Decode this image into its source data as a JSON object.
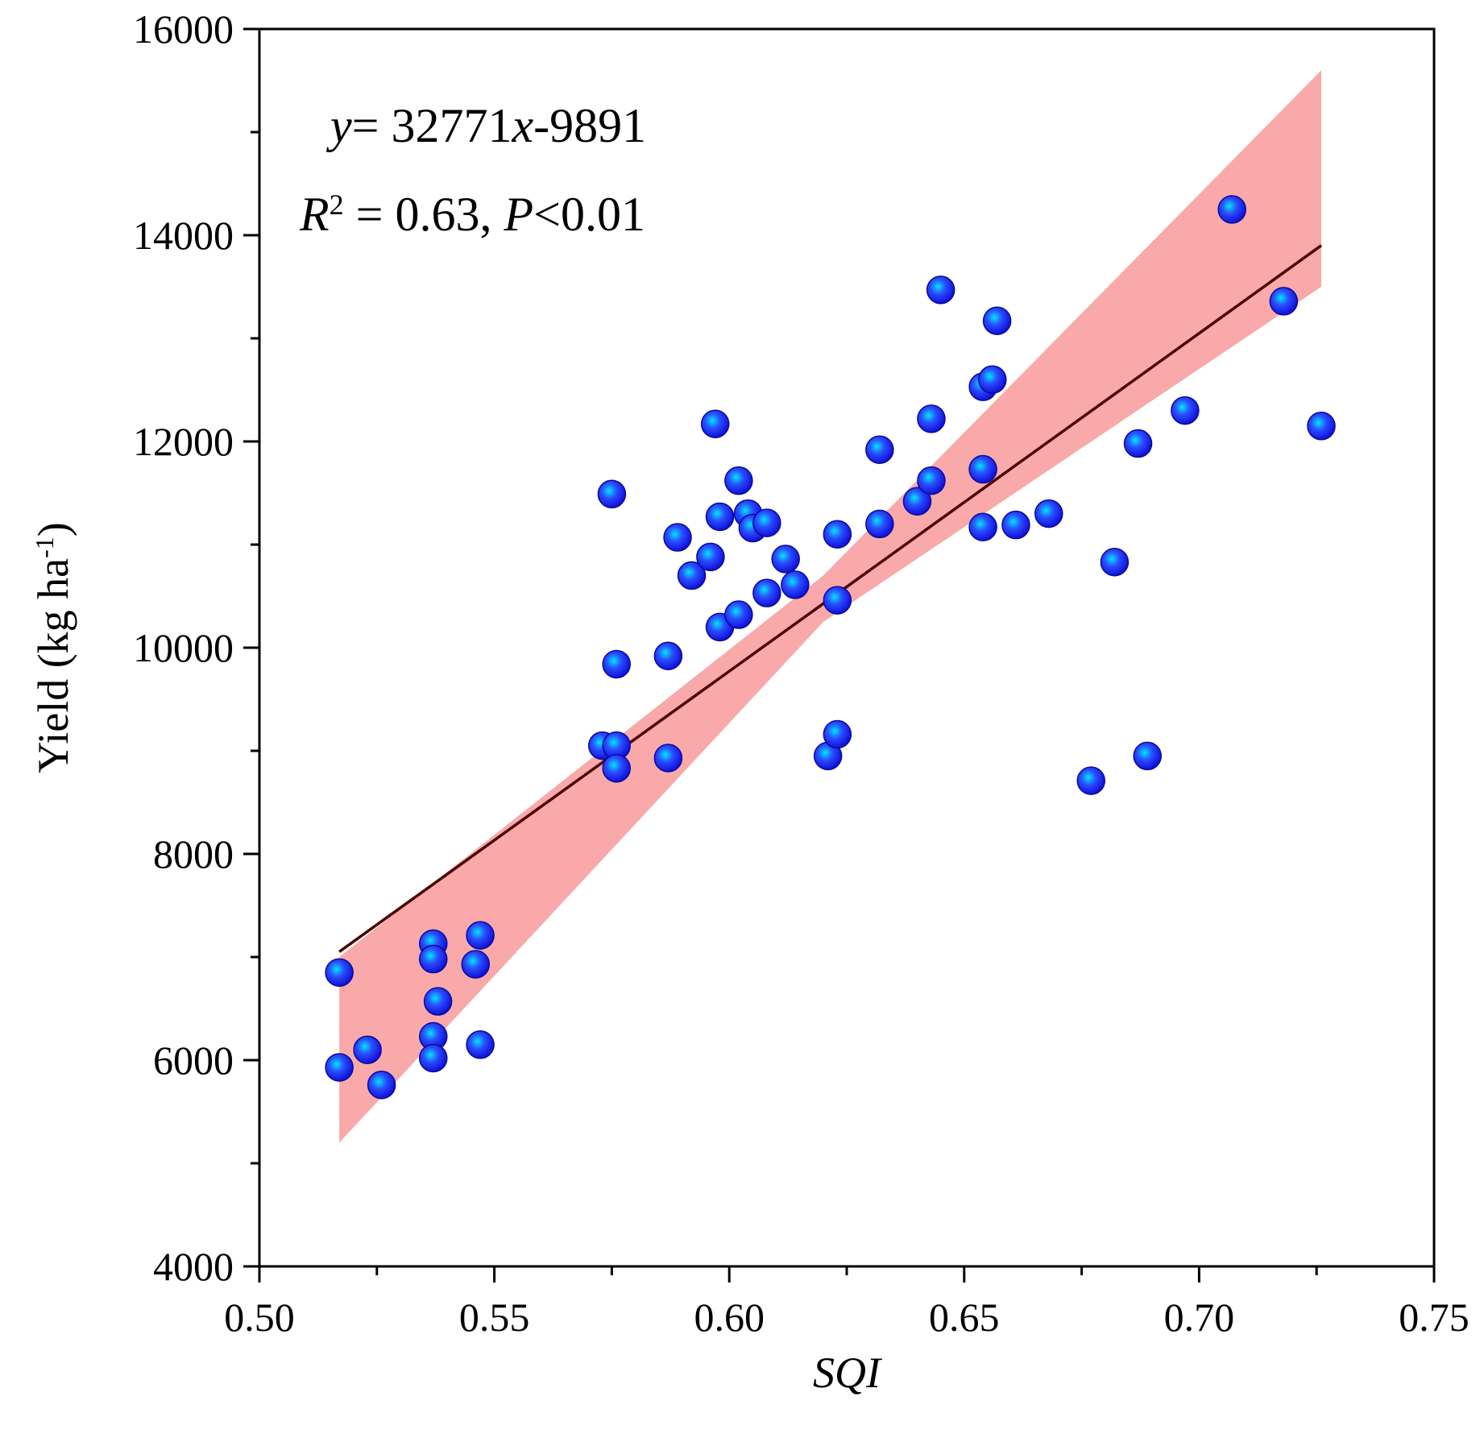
{
  "chart_data": {
    "type": "scatter",
    "title": "",
    "xlabel": "SQI",
    "ylabel_main": "Yield (kg ha",
    "ylabel_sup": "-1",
    "ylabel_close": ")",
    "xlim": [
      0.5,
      0.75
    ],
    "ylim": [
      4000,
      16000
    ],
    "xticks": [
      0.5,
      0.55,
      0.6,
      0.65,
      0.7,
      0.75
    ],
    "xtick_labels": [
      "0.50",
      "0.55",
      "0.60",
      "0.65",
      "0.70",
      "0.75"
    ],
    "yticks": [
      4000,
      6000,
      8000,
      10000,
      12000,
      14000,
      16000
    ],
    "ytick_labels": [
      "4000",
      "6000",
      "8000",
      "10000",
      "12000",
      "14000",
      "16000"
    ],
    "y_minor_step": 1000,
    "grid": false,
    "fit": {
      "slope": 32771,
      "intercept": -9891,
      "x_range": [
        0.517,
        0.726
      ]
    },
    "confidence_band": {
      "color": "#f9a9a9",
      "x": [
        0.517,
        0.62,
        0.726
      ],
      "lower": [
        5200,
        10250,
        13500
      ],
      "upper": [
        7000,
        10700,
        15600
      ]
    },
    "equation": {
      "y_var": "y",
      "eq_part1": "= 32771",
      "x_var": "x",
      "eq_part2": "-9891",
      "r_var": "R",
      "r_sup": "2",
      "r_part": " = 0.63, ",
      "p_var": "P",
      "p_part": "<0.01"
    },
    "colors": {
      "point": "#1a1aff",
      "point_highlight": "#00e5ff",
      "line": "#4a0000",
      "band": "#f9a9a9"
    },
    "points": [
      {
        "x": 0.517,
        "y": 6850
      },
      {
        "x": 0.517,
        "y": 5930
      },
      {
        "x": 0.523,
        "y": 6100
      },
      {
        "x": 0.526,
        "y": 5760
      },
      {
        "x": 0.537,
        "y": 7130
      },
      {
        "x": 0.537,
        "y": 6980
      },
      {
        "x": 0.538,
        "y": 6570
      },
      {
        "x": 0.537,
        "y": 6230
      },
      {
        "x": 0.537,
        "y": 6020
      },
      {
        "x": 0.546,
        "y": 6930
      },
      {
        "x": 0.547,
        "y": 7210
      },
      {
        "x": 0.547,
        "y": 6150
      },
      {
        "x": 0.573,
        "y": 9050
      },
      {
        "x": 0.576,
        "y": 9050
      },
      {
        "x": 0.576,
        "y": 8830
      },
      {
        "x": 0.575,
        "y": 11490
      },
      {
        "x": 0.576,
        "y": 9840
      },
      {
        "x": 0.587,
        "y": 9920
      },
      {
        "x": 0.587,
        "y": 8930
      },
      {
        "x": 0.589,
        "y": 11070
      },
      {
        "x": 0.592,
        "y": 10700
      },
      {
        "x": 0.596,
        "y": 10880
      },
      {
        "x": 0.597,
        "y": 12170
      },
      {
        "x": 0.598,
        "y": 11270
      },
      {
        "x": 0.598,
        "y": 10200
      },
      {
        "x": 0.602,
        "y": 11620
      },
      {
        "x": 0.602,
        "y": 10320
      },
      {
        "x": 0.604,
        "y": 11300
      },
      {
        "x": 0.605,
        "y": 11160
      },
      {
        "x": 0.608,
        "y": 11210
      },
      {
        "x": 0.608,
        "y": 10530
      },
      {
        "x": 0.612,
        "y": 10860
      },
      {
        "x": 0.614,
        "y": 10610
      },
      {
        "x": 0.621,
        "y": 8950
      },
      {
        "x": 0.623,
        "y": 9160
      },
      {
        "x": 0.623,
        "y": 11100
      },
      {
        "x": 0.623,
        "y": 10460
      },
      {
        "x": 0.632,
        "y": 11920
      },
      {
        "x": 0.632,
        "y": 11200
      },
      {
        "x": 0.64,
        "y": 11420
      },
      {
        "x": 0.643,
        "y": 12220
      },
      {
        "x": 0.643,
        "y": 11620
      },
      {
        "x": 0.645,
        "y": 13470
      },
      {
        "x": 0.654,
        "y": 12530
      },
      {
        "x": 0.654,
        "y": 11730
      },
      {
        "x": 0.654,
        "y": 11170
      },
      {
        "x": 0.656,
        "y": 12600
      },
      {
        "x": 0.657,
        "y": 13170
      },
      {
        "x": 0.661,
        "y": 11190
      },
      {
        "x": 0.668,
        "y": 11300
      },
      {
        "x": 0.677,
        "y": 8710
      },
      {
        "x": 0.682,
        "y": 10830
      },
      {
        "x": 0.687,
        "y": 11980
      },
      {
        "x": 0.689,
        "y": 8950
      },
      {
        "x": 0.697,
        "y": 12300
      },
      {
        "x": 0.707,
        "y": 14250
      },
      {
        "x": 0.718,
        "y": 13360
      },
      {
        "x": 0.726,
        "y": 12150
      }
    ]
  }
}
